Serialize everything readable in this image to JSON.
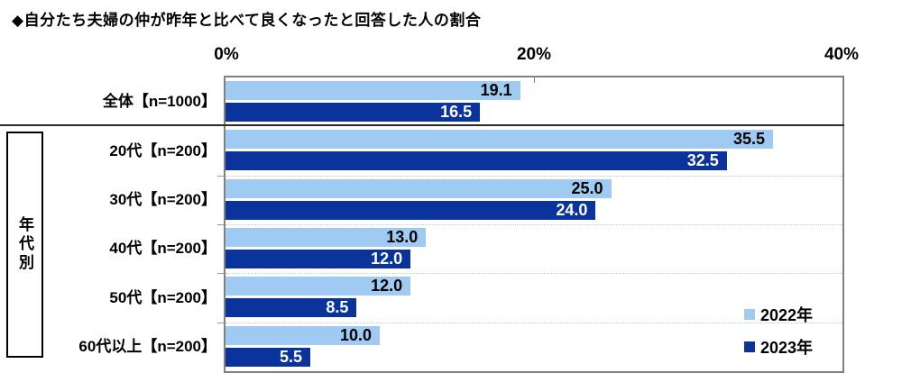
{
  "title": "◆自分たち夫婦の仲が昨年と比べて良くなったと回答した人の割合",
  "chart_data": {
    "type": "bar",
    "orientation": "horizontal",
    "title": "自分たち夫婦の仲が昨年と比べて良くなったと回答した人の割合",
    "categories": [
      "全体【n=1000】",
      "20代【n=200】",
      "30代【n=200】",
      "40代【n=200】",
      "50代【n=200】",
      "60代以上【n=200】"
    ],
    "group_label": "年代別",
    "group_rows": "rows 1-5 (age groups)",
    "series": [
      {
        "name": "2022年",
        "color": "#9FCAF2",
        "values": [
          19.1,
          35.5,
          25.0,
          13.0,
          12.0,
          10.0
        ]
      },
      {
        "name": "2023年",
        "color": "#0A339C",
        "values": [
          16.5,
          32.5,
          24.0,
          12.0,
          8.5,
          5.5
        ]
      }
    ],
    "xlim": [
      0,
      40
    ],
    "x_ticks": [
      "0%",
      "20%",
      "40%"
    ],
    "grid": "light dotted row separators, dark separator under first row",
    "legend_position": "inside-right-bottom",
    "value_labels": "inside bar end, one decimal"
  },
  "legend": {
    "items": [
      {
        "label": "2022年",
        "color": "#9FCAF2"
      },
      {
        "label": "2023年",
        "color": "#0A339C"
      }
    ]
  },
  "colors": {
    "series_2022": "#9FCAF2",
    "series_2023": "#0A339C",
    "plot_border": "#808080",
    "dark_separator": "#2b2b2b",
    "dotted_separator": "#c9c9c9",
    "value_text_on_light": "#000000",
    "value_text_on_dark": "#ffffff"
  }
}
